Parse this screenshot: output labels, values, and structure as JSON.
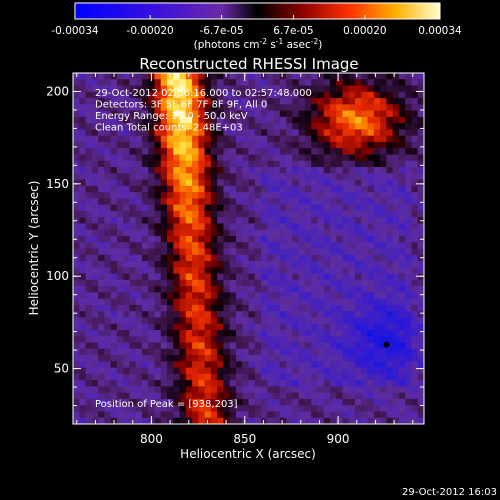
{
  "chart_data": {
    "type": "heatmap",
    "title": "Reconstructed RHESSI Image",
    "xlabel": "Heliocentric X (arcsec)",
    "ylabel": "Heliocentric Y (arcsec)",
    "xlim": [
      758,
      946
    ],
    "ylim": [
      20,
      210
    ],
    "x_ticks": [
      "800",
      "850",
      "900"
    ],
    "x_tick_values": [
      800,
      850,
      900
    ],
    "y_ticks": [
      "50",
      "100",
      "150",
      "200"
    ],
    "y_tick_values": [
      50,
      100,
      150,
      200
    ],
    "colorbar": {
      "min": -0.00034,
      "max": 0.00034,
      "tick_labels": [
        "-0.00034",
        "-0.00020",
        "-6.7e-05",
        "6.7e-05",
        "0.00020",
        "0.00034"
      ],
      "tick_values": [
        -0.00034,
        -0.0002,
        -6.7e-05,
        6.7e-05,
        0.0002,
        0.00034
      ],
      "unit_main": "(photons cm",
      "unit_exp1": "-2",
      "unit_mid": " s",
      "unit_exp2": "-1",
      "unit_mid2": " asec",
      "unit_exp3": "-2",
      "unit_end": ")"
    },
    "annotations": [
      "29-Oct-2012 02:56:16.000 to 02:57:48.000",
      "Detectors: 3F 5F 6F 7F 8F 9F, All 0",
      "Energy Range: 25.0 - 50.0 keV",
      "Clean     Total counts: 2.48E+03"
    ],
    "peak_text": "Position of Peak = [938,203]",
    "peak": [
      938,
      203
    ],
    "grid": false
  },
  "footer_timestamp": "29-Oct-2012 16:03"
}
